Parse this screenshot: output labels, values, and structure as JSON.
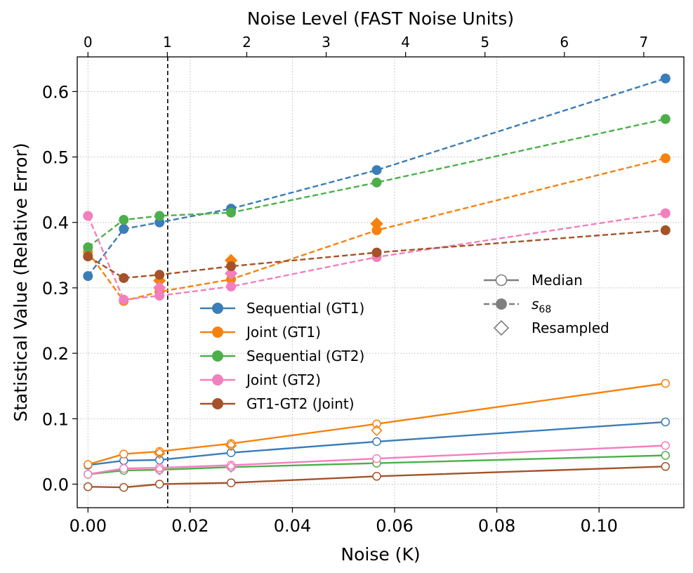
{
  "chart_data": {
    "type": "line",
    "xlabel": "Noise (K)",
    "ylabel": "Statistical Value (Relative Error)",
    "top_xlabel": "Noise Level (FAST Noise Units)",
    "xlim": [
      -0.0021,
      0.1166
    ],
    "ylim": [
      -0.036,
      0.653
    ],
    "top_xlim": [
      -0.135,
      7.505
    ],
    "x_ticks": [
      0.0,
      0.02,
      0.04,
      0.06,
      0.08,
      0.1
    ],
    "x_tick_labels": [
      "0.00",
      "0.02",
      "0.04",
      "0.06",
      "0.08",
      "0.10"
    ],
    "y_ticks": [
      0.0,
      0.1,
      0.2,
      0.3,
      0.4,
      0.5,
      0.6
    ],
    "y_tick_labels": [
      "0.0",
      "0.1",
      "0.2",
      "0.3",
      "0.4",
      "0.5",
      "0.6"
    ],
    "top_x_ticks": [
      0,
      1,
      2,
      3,
      4,
      5,
      6,
      7
    ],
    "top_x_tick_labels": [
      "0",
      "1",
      "2",
      "3",
      "4",
      "5",
      "6",
      "7"
    ],
    "grid": true,
    "vline_x": 0.0156,
    "x": [
      0.0,
      0.007,
      0.014,
      0.028,
      0.0565,
      0.113
    ],
    "series": [
      {
        "name": "Sequential (GT1)",
        "color": "#3a7db8",
        "median": [
          0.029,
          0.036,
          0.037,
          0.048,
          0.065,
          0.095
        ],
        "s68": [
          0.318,
          0.39,
          0.4,
          0.421,
          0.48,
          0.62
        ]
      },
      {
        "name": "Joint (GT1)",
        "color": "#f6820e",
        "median": [
          0.03,
          0.046,
          0.05,
          0.062,
          0.092,
          0.154
        ],
        "s68": [
          0.355,
          0.28,
          0.294,
          0.313,
          0.388,
          0.498
        ],
        "resampled_median": [
          {
            "x": 0.014,
            "y": 0.047
          },
          {
            "x": 0.028,
            "y": 0.059
          },
          {
            "x": 0.0565,
            "y": 0.082
          }
        ],
        "resampled_s68": [
          {
            "x": 0.014,
            "y": 0.311
          },
          {
            "x": 0.028,
            "y": 0.342
          },
          {
            "x": 0.0565,
            "y": 0.398
          }
        ]
      },
      {
        "name": "Sequential (GT2)",
        "color": "#4daf4a",
        "median": [
          0.015,
          0.021,
          0.022,
          0.026,
          0.032,
          0.044
        ],
        "s68": [
          0.362,
          0.404,
          0.41,
          0.415,
          0.461,
          0.558
        ]
      },
      {
        "name": "Joint (GT2)",
        "color": "#f27fbe",
        "median": [
          0.015,
          0.024,
          0.025,
          0.029,
          0.039,
          0.059
        ],
        "s68": [
          0.41,
          0.282,
          0.288,
          0.302,
          0.347,
          0.414
        ],
        "resampled_median": [
          {
            "x": 0.014,
            "y": 0.022
          },
          {
            "x": 0.028,
            "y": 0.026
          }
        ],
        "resampled_s68": [
          {
            "x": 0.014,
            "y": 0.3
          },
          {
            "x": 0.028,
            "y": 0.322
          }
        ]
      },
      {
        "name": "GT1-GT2 (Joint)",
        "color": "#a5522b",
        "median": [
          -0.004,
          -0.005,
          0.0,
          0.002,
          0.012,
          0.027
        ],
        "s68": [
          0.348,
          0.315,
          0.32,
          0.333,
          0.354,
          0.388
        ]
      }
    ],
    "style_legend": [
      {
        "label": "Median",
        "style": "solid-open-circle"
      },
      {
        "label": "s",
        "subscript": "68",
        "style": "dashed-filled-circle"
      },
      {
        "label": "Resampled",
        "style": "open-diamond"
      }
    ]
  }
}
